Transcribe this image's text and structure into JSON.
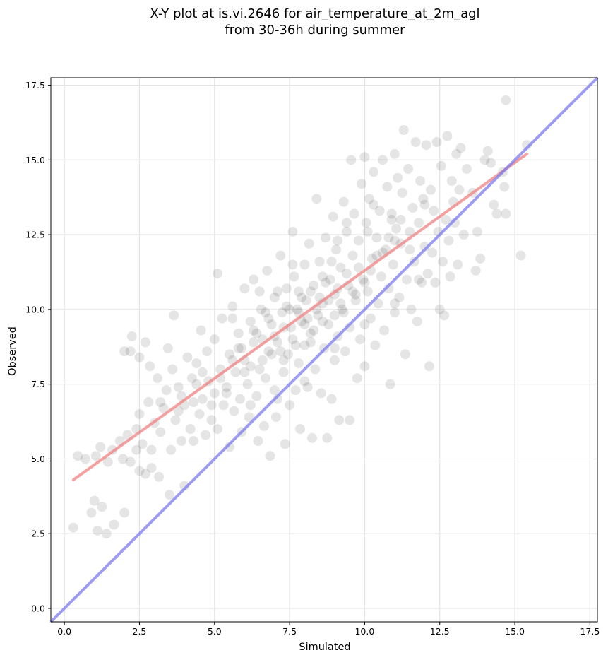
{
  "chart_data": {
    "type": "scatter",
    "title_lines": [
      "X-Y plot at is.vi.2646 for air_temperature_at_2m_agl",
      "from 30-36h during summer"
    ],
    "xlabel": "Simulated",
    "ylabel": "Observed",
    "xlim": [
      -0.45,
      17.75
    ],
    "ylim": [
      -0.45,
      17.75
    ],
    "xticks": [
      0.0,
      2.5,
      5.0,
      7.5,
      10.0,
      12.5,
      15.0,
      17.5
    ],
    "yticks": [
      0.0,
      2.5,
      5.0,
      7.5,
      10.0,
      12.5,
      15.0,
      17.5
    ],
    "tick_labels": [
      "0.0",
      "2.5",
      "5.0",
      "7.5",
      "10.0",
      "12.5",
      "15.0",
      "17.5"
    ],
    "grid": true,
    "colors": {
      "points": "#000000",
      "fit_line": "#f08080",
      "identity_line": "#7b7bf0"
    },
    "fit_line": {
      "x": [
        0.3,
        15.4
      ],
      "y": [
        4.3,
        15.2
      ]
    },
    "identity_line": {
      "x": [
        -0.45,
        17.75
      ],
      "y": [
        -0.45,
        17.75
      ]
    },
    "points": [
      [
        0.3,
        2.7
      ],
      [
        0.45,
        5.1
      ],
      [
        0.7,
        5.0
      ],
      [
        0.9,
        3.2
      ],
      [
        1.0,
        3.6
      ],
      [
        1.05,
        5.1
      ],
      [
        1.1,
        2.6
      ],
      [
        1.2,
        5.4
      ],
      [
        1.25,
        3.4
      ],
      [
        1.4,
        2.5
      ],
      [
        1.45,
        4.9
      ],
      [
        1.6,
        5.3
      ],
      [
        1.65,
        2.8
      ],
      [
        1.85,
        5.6
      ],
      [
        1.95,
        5.0
      ],
      [
        2.0,
        3.2
      ],
      [
        2.0,
        8.6
      ],
      [
        2.1,
        5.8
      ],
      [
        2.2,
        8.6
      ],
      [
        2.25,
        9.1
      ],
      [
        2.4,
        5.3
      ],
      [
        2.4,
        6.0
      ],
      [
        2.5,
        8.4
      ],
      [
        2.5,
        4.6
      ],
      [
        2.6,
        5.5
      ],
      [
        2.7,
        4.5
      ],
      [
        2.7,
        8.9
      ],
      [
        2.8,
        6.9
      ],
      [
        2.85,
        8.1
      ],
      [
        2.9,
        4.7
      ],
      [
        3.0,
        6.2
      ],
      [
        3.1,
        7.7
      ],
      [
        3.15,
        4.4
      ],
      [
        3.2,
        5.9
      ],
      [
        3.3,
        6.7
      ],
      [
        3.4,
        7.3
      ],
      [
        3.45,
        8.7
      ],
      [
        3.5,
        3.8
      ],
      [
        3.55,
        5.3
      ],
      [
        3.6,
        8.0
      ],
      [
        3.65,
        9.8
      ],
      [
        3.7,
        6.3
      ],
      [
        3.8,
        7.4
      ],
      [
        3.9,
        5.6
      ],
      [
        4.0,
        4.1
      ],
      [
        4.0,
        6.8
      ],
      [
        4.1,
        8.4
      ],
      [
        4.2,
        6.0
      ],
      [
        4.25,
        7.7
      ],
      [
        4.3,
        5.6
      ],
      [
        4.4,
        8.2
      ],
      [
        4.5,
        6.5
      ],
      [
        4.55,
        9.3
      ],
      [
        4.6,
        7.0
      ],
      [
        4.7,
        5.8
      ],
      [
        4.75,
        8.6
      ],
      [
        4.8,
        7.6
      ],
      [
        4.9,
        6.3
      ],
      [
        5.0,
        9.0
      ],
      [
        5.0,
        7.2
      ],
      [
        5.1,
        6.0
      ],
      [
        5.1,
        11.2
      ],
      [
        5.2,
        8.0
      ],
      [
        5.25,
        9.7
      ],
      [
        5.3,
        6.8
      ],
      [
        5.4,
        7.4
      ],
      [
        5.5,
        5.4
      ],
      [
        5.5,
        8.5
      ],
      [
        5.6,
        10.1
      ],
      [
        5.65,
        6.6
      ],
      [
        5.7,
        7.9
      ],
      [
        5.8,
        9.2
      ],
      [
        5.85,
        7.0
      ],
      [
        5.9,
        5.9
      ],
      [
        6.0,
        8.3
      ],
      [
        6.0,
        10.7
      ],
      [
        6.1,
        7.5
      ],
      [
        6.15,
        6.4
      ],
      [
        6.2,
        9.6
      ],
      [
        6.3,
        8.9
      ],
      [
        6.3,
        11.0
      ],
      [
        6.4,
        7.1
      ],
      [
        6.45,
        5.6
      ],
      [
        6.5,
        8.0
      ],
      [
        6.55,
        10.0
      ],
      [
        6.6,
        9.0
      ],
      [
        6.65,
        6.1
      ],
      [
        6.7,
        7.7
      ],
      [
        6.75,
        11.3
      ],
      [
        6.8,
        8.6
      ],
      [
        6.85,
        5.1
      ],
      [
        6.9,
        9.5
      ],
      [
        7.0,
        10.4
      ],
      [
        7.0,
        7.3
      ],
      [
        7.05,
        6.4
      ],
      [
        7.1,
        8.9
      ],
      [
        7.2,
        11.8
      ],
      [
        7.25,
        9.9
      ],
      [
        7.3,
        7.9
      ],
      [
        7.35,
        5.5
      ],
      [
        7.4,
        10.7
      ],
      [
        7.45,
        8.5
      ],
      [
        7.5,
        6.8
      ],
      [
        7.55,
        9.4
      ],
      [
        7.6,
        12.6
      ],
      [
        7.65,
        11.1
      ],
      [
        7.7,
        7.3
      ],
      [
        7.75,
        10.0
      ],
      [
        7.8,
        8.2
      ],
      [
        7.85,
        6.0
      ],
      [
        7.9,
        9.6
      ],
      [
        8.0,
        11.5
      ],
      [
        8.0,
        8.8
      ],
      [
        8.05,
        10.3
      ],
      [
        8.1,
        7.4
      ],
      [
        8.15,
        12.2
      ],
      [
        8.2,
        9.2
      ],
      [
        8.25,
        5.7
      ],
      [
        8.3,
        10.8
      ],
      [
        8.35,
        8.0
      ],
      [
        8.4,
        13.7
      ],
      [
        8.45,
        9.8
      ],
      [
        8.5,
        11.6
      ],
      [
        8.55,
        7.2
      ],
      [
        8.6,
        10.2
      ],
      [
        8.65,
        8.7
      ],
      [
        8.7,
        12.4
      ],
      [
        8.75,
        5.7
      ],
      [
        8.8,
        9.5
      ],
      [
        8.85,
        11.0
      ],
      [
        8.9,
        7.0
      ],
      [
        8.95,
        13.1
      ],
      [
        9.0,
        10.5
      ],
      [
        9.0,
        8.3
      ],
      [
        9.05,
        12.0
      ],
      [
        9.1,
        9.1
      ],
      [
        9.15,
        6.3
      ],
      [
        9.2,
        11.4
      ],
      [
        9.25,
        10.0
      ],
      [
        9.3,
        13.6
      ],
      [
        9.35,
        8.6
      ],
      [
        9.4,
        12.6
      ],
      [
        9.45,
        10.8
      ],
      [
        9.5,
        6.3
      ],
      [
        9.5,
        9.4
      ],
      [
        9.55,
        15.0
      ],
      [
        9.6,
        11.8
      ],
      [
        9.65,
        13.2
      ],
      [
        9.7,
        10.3
      ],
      [
        9.75,
        7.7
      ],
      [
        9.8,
        12.3
      ],
      [
        9.85,
        9.0
      ],
      [
        9.9,
        14.2
      ],
      [
        9.95,
        11.0
      ],
      [
        10.0,
        8.1
      ],
      [
        10.0,
        15.1
      ],
      [
        10.05,
        12.9
      ],
      [
        10.1,
        10.6
      ],
      [
        10.15,
        13.7
      ],
      [
        10.2,
        9.7
      ],
      [
        10.25,
        11.7
      ],
      [
        10.3,
        14.6
      ],
      [
        10.35,
        8.8
      ],
      [
        10.4,
        12.4
      ],
      [
        10.45,
        10.2
      ],
      [
        10.5,
        13.3
      ],
      [
        10.55,
        11.1
      ],
      [
        10.6,
        15.0
      ],
      [
        10.65,
        9.3
      ],
      [
        10.7,
        12.0
      ],
      [
        10.75,
        14.1
      ],
      [
        10.8,
        10.7
      ],
      [
        10.85,
        7.5
      ],
      [
        10.9,
        13.0
      ],
      [
        10.95,
        11.5
      ],
      [
        11.0,
        15.2
      ],
      [
        11.0,
        9.9
      ],
      [
        11.05,
        12.7
      ],
      [
        11.1,
        14.4
      ],
      [
        11.15,
        10.4
      ],
      [
        11.2,
        12.2
      ],
      [
        11.25,
        13.9
      ],
      [
        11.3,
        16.0
      ],
      [
        11.35,
        8.5
      ],
      [
        11.4,
        11.0
      ],
      [
        11.45,
        14.7
      ],
      [
        11.5,
        12.6
      ],
      [
        11.55,
        10.0
      ],
      [
        11.6,
        13.4
      ],
      [
        11.65,
        11.6
      ],
      [
        11.7,
        15.6
      ],
      [
        11.75,
        9.6
      ],
      [
        11.8,
        12.9
      ],
      [
        11.85,
        14.3
      ],
      [
        11.9,
        10.9
      ],
      [
        11.95,
        13.7
      ],
      [
        12.0,
        12.1
      ],
      [
        12.05,
        15.5
      ],
      [
        12.1,
        11.2
      ],
      [
        12.15,
        8.1
      ],
      [
        12.2,
        14.0
      ],
      [
        12.25,
        11.9
      ],
      [
        12.3,
        13.3
      ],
      [
        12.35,
        10.9
      ],
      [
        12.4,
        15.6
      ],
      [
        12.45,
        12.6
      ],
      [
        12.5,
        10.0
      ],
      [
        12.55,
        14.8
      ],
      [
        12.6,
        11.6
      ],
      [
        12.65,
        9.8
      ],
      [
        12.7,
        13.0
      ],
      [
        12.75,
        15.8
      ],
      [
        12.8,
        12.3
      ],
      [
        12.85,
        11.1
      ],
      [
        12.9,
        14.3
      ],
      [
        12.95,
        13.6
      ],
      [
        13.0,
        12.9
      ],
      [
        13.05,
        15.2
      ],
      [
        13.1,
        11.5
      ],
      [
        13.15,
        14.0
      ],
      [
        13.2,
        15.4
      ],
      [
        13.3,
        12.5
      ],
      [
        13.4,
        14.7
      ],
      [
        13.6,
        13.9
      ],
      [
        13.7,
        11.3
      ],
      [
        13.75,
        12.6
      ],
      [
        13.85,
        11.7
      ],
      [
        14.0,
        15.0
      ],
      [
        14.1,
        15.3
      ],
      [
        14.2,
        14.9
      ],
      [
        14.3,
        13.5
      ],
      [
        14.4,
        13.2
      ],
      [
        14.6,
        14.6
      ],
      [
        14.65,
        14.1
      ],
      [
        14.7,
        13.2
      ],
      [
        14.7,
        17.0
      ],
      [
        15.2,
        11.8
      ],
      [
        15.4,
        15.5
      ],
      [
        3.2,
        6.9
      ],
      [
        3.8,
        6.6
      ],
      [
        4.3,
        6.9
      ],
      [
        4.6,
        7.9
      ],
      [
        5.2,
        7.7
      ],
      [
        5.6,
        8.3
      ],
      [
        5.9,
        8.7
      ],
      [
        6.2,
        8.1
      ],
      [
        6.4,
        9.2
      ],
      [
        6.6,
        8.3
      ],
      [
        6.8,
        9.7
      ],
      [
        7.0,
        9.1
      ],
      [
        7.2,
        8.6
      ],
      [
        7.3,
        9.4
      ],
      [
        7.4,
        10.1
      ],
      [
        7.6,
        9.0
      ],
      [
        7.7,
        8.8
      ],
      [
        7.8,
        9.9
      ],
      [
        7.9,
        10.4
      ],
      [
        8.1,
        9.7
      ],
      [
        8.2,
        10.6
      ],
      [
        8.3,
        9.3
      ],
      [
        8.4,
        10.0
      ],
      [
        8.6,
        9.6
      ],
      [
        8.7,
        10.9
      ],
      [
        8.8,
        10.3
      ],
      [
        9.0,
        9.8
      ],
      [
        9.1,
        10.7
      ],
      [
        9.2,
        10.2
      ],
      [
        9.4,
        11.2
      ],
      [
        9.6,
        10.6
      ],
      [
        9.8,
        11.4
      ],
      [
        10.0,
        10.9
      ],
      [
        10.2,
        11.3
      ],
      [
        10.4,
        11.8
      ],
      [
        10.6,
        11.9
      ],
      [
        10.8,
        12.4
      ],
      [
        11.0,
        12.3
      ],
      [
        7.1,
        10.6
      ],
      [
        7.5,
        10.0
      ],
      [
        8.0,
        9.5
      ],
      [
        8.5,
        10.4
      ],
      [
        6.0,
        7.9
      ],
      [
        5.4,
        7.2
      ],
      [
        4.9,
        6.8
      ],
      [
        6.7,
        9.9
      ],
      [
        7.8,
        10.6
      ],
      [
        8.9,
        11.6
      ],
      [
        9.3,
        9.9
      ],
      [
        9.7,
        10.5
      ],
      [
        6.3,
        9.3
      ],
      [
        5.8,
        8.7
      ],
      [
        6.9,
        8.5
      ],
      [
        7.3,
        8.3
      ],
      [
        8.2,
        8.9
      ],
      [
        9.1,
        12.3
      ],
      [
        10.1,
        12.6
      ],
      [
        10.9,
        13.2
      ],
      [
        11.5,
        12.0
      ],
      [
        7.6,
        11.5
      ],
      [
        6.5,
        10.6
      ],
      [
        5.6,
        9.7
      ],
      [
        4.4,
        7.5
      ],
      [
        3.9,
        7.1
      ],
      [
        2.9,
        5.3
      ],
      [
        2.5,
        6.5
      ],
      [
        2.2,
        4.9
      ],
      [
        8.6,
        11.1
      ],
      [
        9.4,
        12.9
      ],
      [
        10.3,
        13.5
      ],
      [
        11.2,
        13.0
      ],
      [
        12.0,
        13.5
      ],
      [
        6.2,
        6.8
      ],
      [
        7.1,
        7.0
      ],
      [
        8.0,
        7.6
      ],
      [
        9.0,
        8.7
      ],
      [
        10.0,
        9.5
      ],
      [
        11.0,
        10.2
      ],
      [
        11.8,
        11.0
      ]
    ]
  }
}
